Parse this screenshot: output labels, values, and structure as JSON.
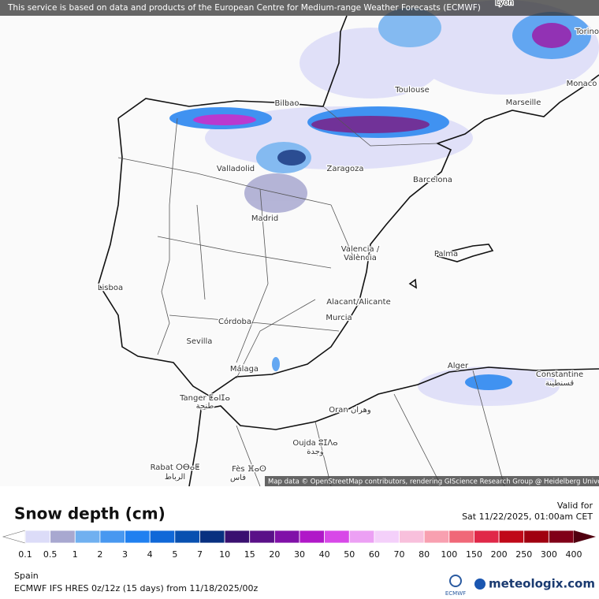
{
  "header": {
    "notice": "This service is based on data and products of the European Centre for Medium-range Weather Forecasts (ECMWF)"
  },
  "map": {
    "attribution": "Map data © OpenStreetMap contributors, rendering GIScience Research Group @ Heidelberg University",
    "cities": [
      "Lyon",
      "Torino",
      "Toulouse",
      "Monaco",
      "Marseille",
      "Bilbao",
      "Valladolid",
      "Zaragoza",
      "Barcelona",
      "Madrid",
      "Valencia /",
      "València",
      "Palma",
      "Lisboa",
      "Alacant/Alicante",
      "Murcia",
      "Córdoba",
      "Sevilla",
      "Málaga",
      "Alger",
      "Constantine",
      "قسنطينة",
      "Tanger ⵟⴰⵏⵊⴰ",
      "طنجة",
      "Oran وهران",
      "Oujda ⵓⵊⴷⴰ",
      "وجدة",
      "Rabat ⵔⴱⴰⵟ",
      "الرباط",
      "Fès ⴼⴰⵙ",
      "فاس"
    ]
  },
  "legend": {
    "title": "Snow depth (cm)",
    "valid_label": "Valid for",
    "valid_time": "Sat 11/22/2025, 01:00am CET",
    "ticks": [
      0.1,
      0.5,
      1,
      2,
      3,
      4,
      5,
      7,
      10,
      15,
      20,
      30,
      40,
      50,
      60,
      70,
      80,
      100,
      150,
      200,
      250,
      300,
      400
    ],
    "colors": [
      "#ffffff",
      "#dcdcf8",
      "#a8a8d0",
      "#70b0f0",
      "#4898f0",
      "#2080f0",
      "#1068d8",
      "#0850b0",
      "#083080",
      "#3a1070",
      "#5a1088",
      "#8010a8",
      "#b018c8",
      "#d848e8",
      "#eca0f4",
      "#f4d0fa",
      "#f8c0dc",
      "#f8a0b0",
      "#f06878",
      "#e02848",
      "#c00818",
      "#a00010",
      "#800018",
      "#500010"
    ]
  },
  "footer": {
    "region": "Spain",
    "model": "ECMWF IFS HRES 0z/12z (15 days) from 11/18/2025/00z",
    "ecmwf": "ECMWF",
    "brand": "meteologix.com"
  }
}
